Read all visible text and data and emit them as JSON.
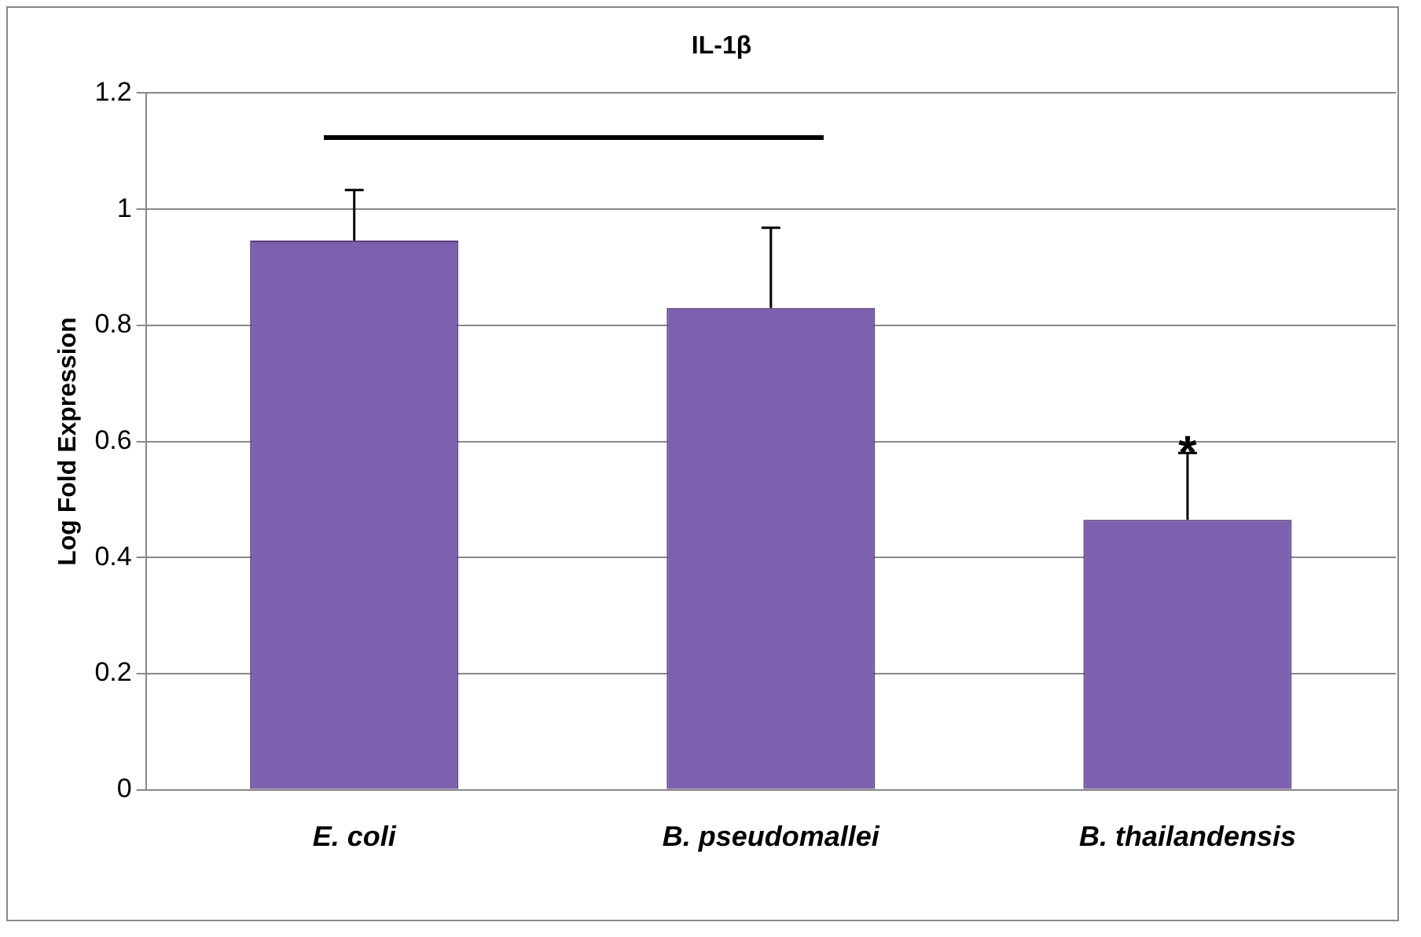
{
  "chart_data": {
    "type": "bar",
    "title": "IL-1β",
    "ylabel": "Log Fold Expression",
    "categories": [
      "E. coli",
      "B. pseudomallei",
      "B. thailandensis"
    ],
    "values": [
      0.946,
      0.83,
      0.465
    ],
    "errors": [
      [
        0.946,
        1.033
      ],
      [
        0.83,
        0.968
      ],
      [
        0.465,
        0.58
      ]
    ],
    "color": "#7d60ad",
    "ylim": [
      0,
      1.2
    ],
    "yticks": [
      0,
      0.2,
      0.4,
      0.6,
      0.8,
      1,
      1.2
    ],
    "grid": "y",
    "legend": false,
    "annotations": [
      "*"
    ]
  }
}
